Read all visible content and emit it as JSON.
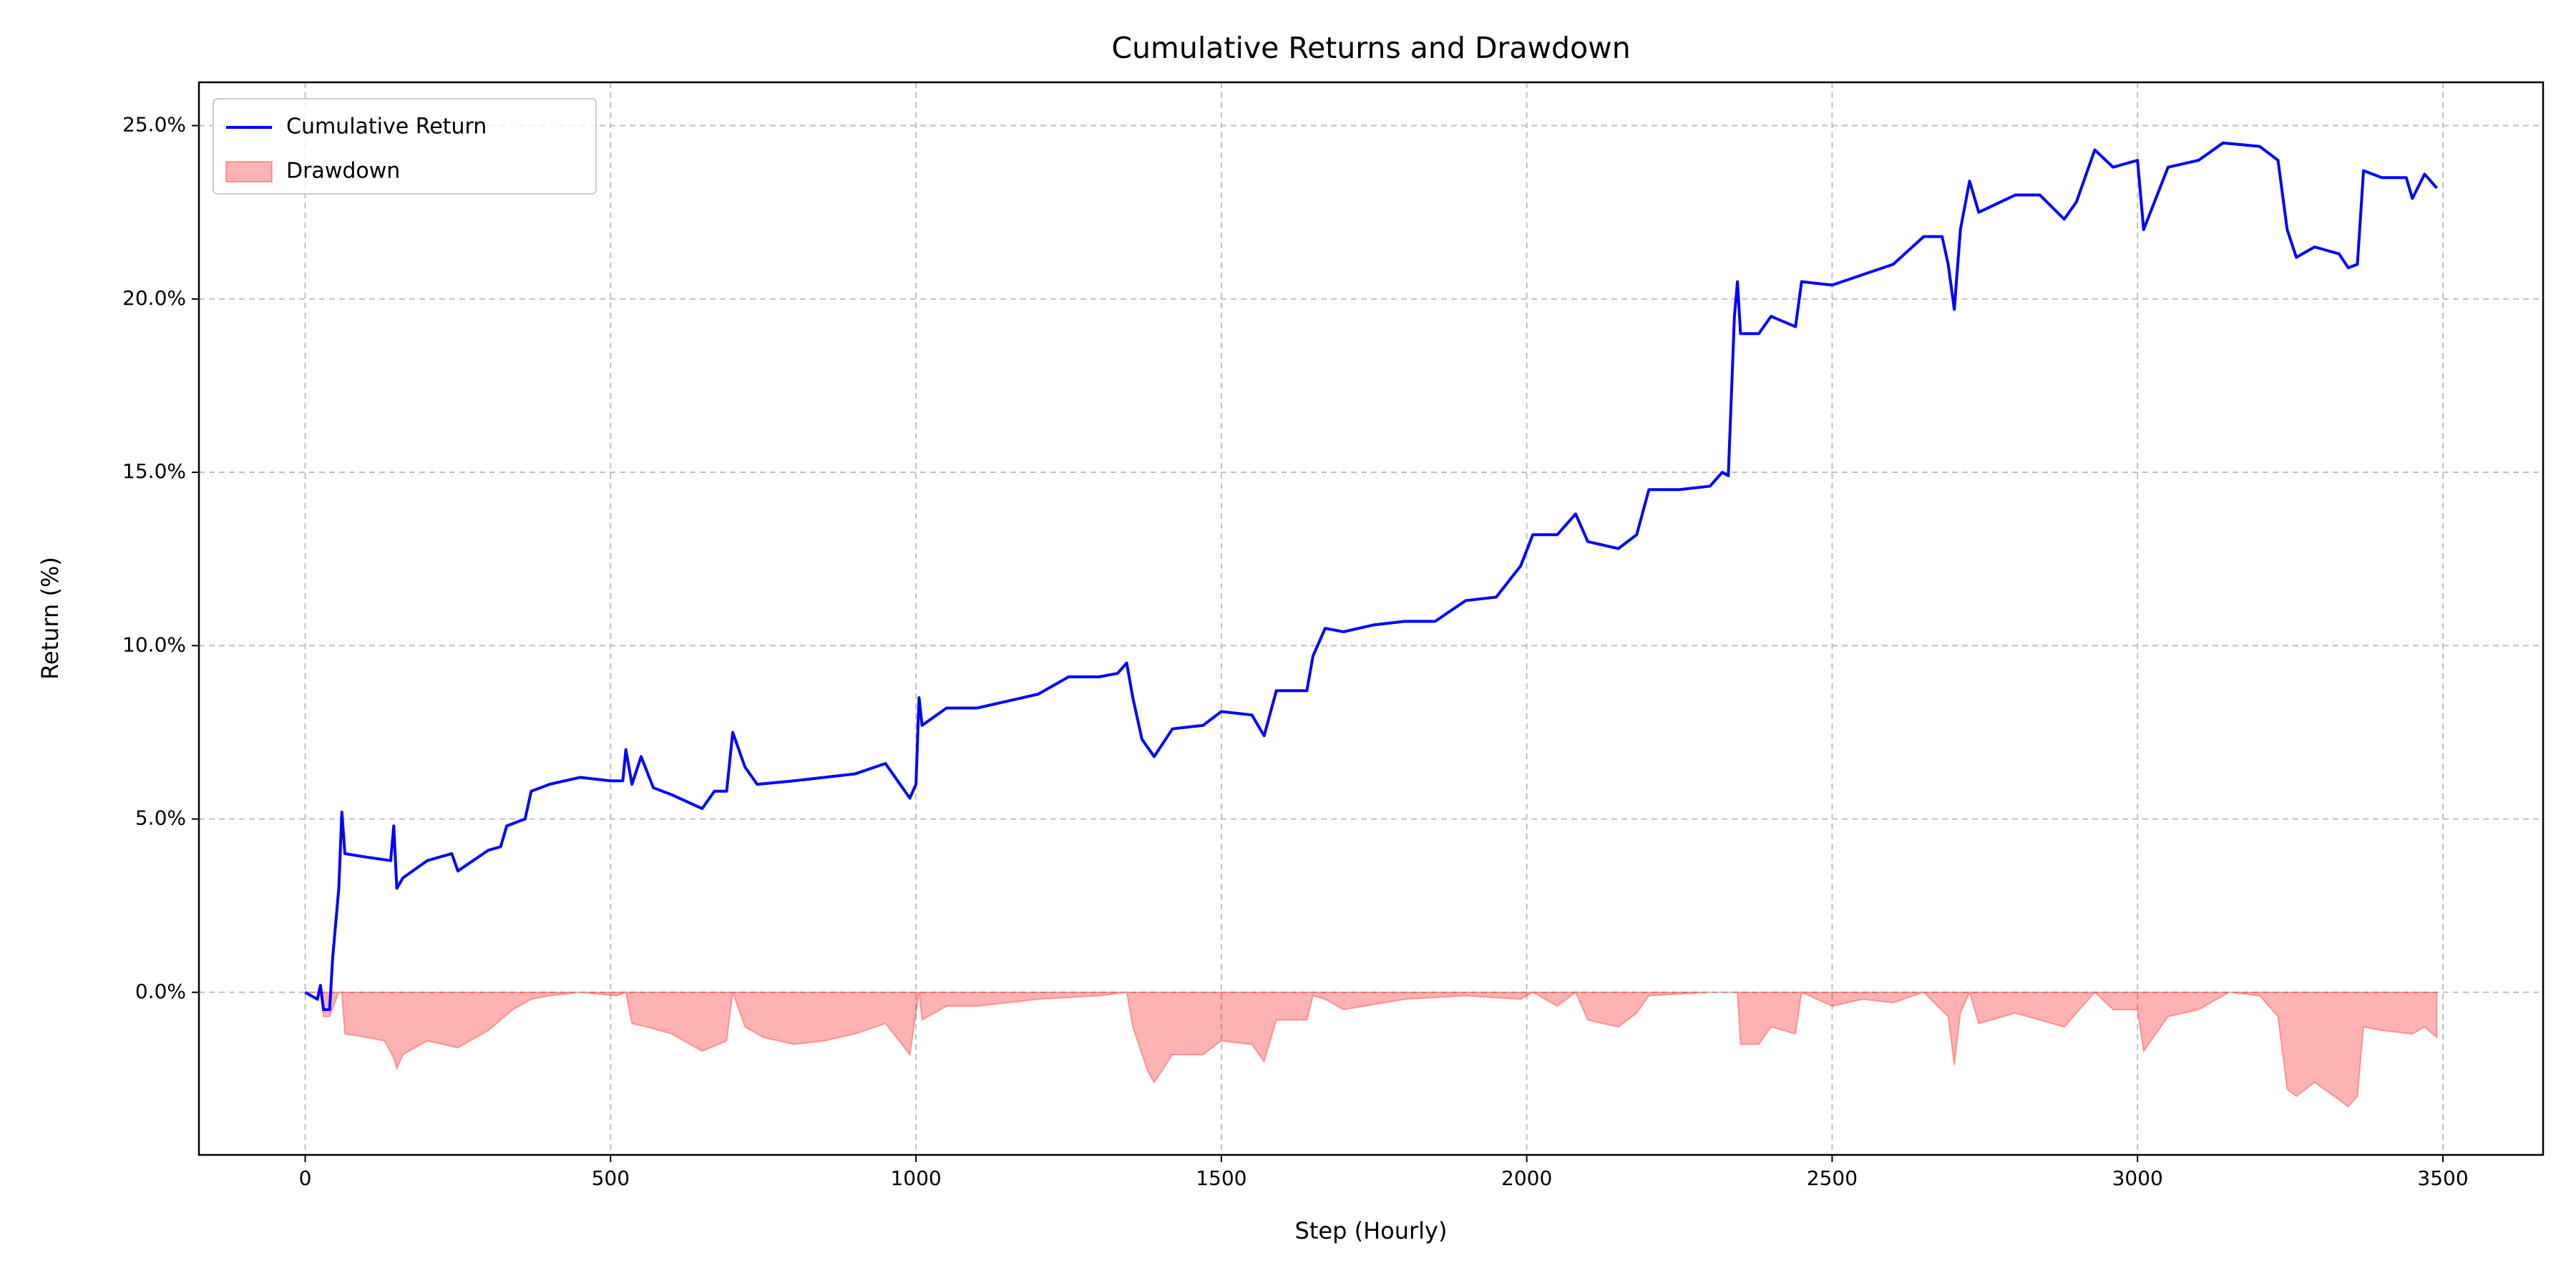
{
  "chart_data": {
    "type": "line",
    "title": "Cumulative Returns and Drawdown",
    "x_label": "Step (Hourly)",
    "y_label": "Return (%)",
    "xlim": [
      -174,
      3664
    ],
    "ylim": [
      -4.69,
      26.25
    ],
    "xticks": [
      0,
      500,
      1000,
      1500,
      2000,
      2500,
      3000,
      3500
    ],
    "yticks": [
      {
        "value": 0,
        "label": "0.0%"
      },
      {
        "value": 5,
        "label": "5.0%"
      },
      {
        "value": 10,
        "label": "10.0%"
      },
      {
        "value": 15,
        "label": "15.0%"
      },
      {
        "value": 20,
        "label": "20.0%"
      },
      {
        "value": 25,
        "label": "25.0%"
      }
    ],
    "grid": true,
    "legend": "upper left",
    "series": [
      {
        "name": "Cumulative Return",
        "kind": "line",
        "color": "#0000ff",
        "x": [
          0,
          20,
          25,
          30,
          40,
          45,
          55,
          60,
          65,
          100,
          140,
          145,
          150,
          160,
          200,
          240,
          250,
          300,
          320,
          330,
          360,
          370,
          400,
          450,
          500,
          520,
          525,
          535,
          550,
          570,
          600,
          650,
          670,
          690,
          700,
          720,
          740,
          800,
          850,
          900,
          950,
          990,
          1000,
          1005,
          1010,
          1050,
          1100,
          1150,
          1200,
          1250,
          1300,
          1330,
          1345,
          1355,
          1370,
          1390,
          1420,
          1470,
          1500,
          1550,
          1570,
          1590,
          1640,
          1650,
          1670,
          1700,
          1750,
          1800,
          1850,
          1900,
          1950,
          1990,
          2010,
          2050,
          2080,
          2100,
          2150,
          2180,
          2200,
          2250,
          2300,
          2320,
          2330,
          2340,
          2345,
          2350,
          2380,
          2400,
          2440,
          2450,
          2500,
          2550,
          2600,
          2650,
          2680,
          2690,
          2700,
          2710,
          2725,
          2740,
          2800,
          2840,
          2880,
          2900,
          2930,
          2960,
          3000,
          3010,
          3050,
          3100,
          3140,
          3200,
          3230,
          3245,
          3260,
          3290,
          3330,
          3345,
          3360,
          3370,
          3400,
          3440,
          3450,
          3470,
          3490
        ],
        "values": [
          0,
          -0.2,
          0.2,
          -0.5,
          -0.5,
          1,
          3,
          5.2,
          4,
          3.9,
          3.8,
          4.8,
          3,
          3.3,
          3.8,
          4.0,
          3.5,
          4.1,
          4.2,
          4.8,
          5.0,
          5.8,
          6.0,
          6.2,
          6.1,
          6.1,
          7.0,
          6.0,
          6.8,
          5.9,
          5.7,
          5.3,
          5.8,
          5.8,
          7.5,
          6.5,
          6.0,
          6.1,
          6.2,
          6.3,
          6.6,
          5.6,
          6.0,
          8.5,
          7.7,
          8.2,
          8.2,
          8.4,
          8.6,
          9.1,
          9.1,
          9.2,
          9.5,
          8.5,
          7.3,
          6.8,
          7.6,
          7.7,
          8.1,
          8.0,
          7.4,
          8.7,
          8.7,
          9.7,
          10.5,
          10.4,
          10.6,
          10.7,
          10.7,
          11.3,
          11.4,
          12.3,
          13.2,
          13.2,
          13.8,
          13.0,
          12.8,
          13.2,
          14.5,
          14.5,
          14.6,
          15.0,
          14.9,
          19.5,
          20.5,
          19.0,
          19.0,
          19.5,
          19.2,
          20.5,
          20.4,
          20.7,
          21.0,
          21.8,
          21.8,
          21.0,
          19.7,
          22.0,
          23.4,
          22.5,
          23.0,
          23.0,
          22.3,
          22.8,
          24.3,
          23.8,
          24.0,
          22.0,
          23.8,
          24.0,
          24.5,
          24.4,
          24.0,
          22.0,
          21.2,
          21.5,
          21.3,
          20.9,
          21.0,
          23.7,
          23.5,
          23.5,
          22.9,
          23.6,
          23.2
        ]
      },
      {
        "name": "Drawdown",
        "kind": "area",
        "color": "#ff0000",
        "alpha": 0.3,
        "x": [
          0,
          25,
          30,
          40,
          55,
          60,
          65,
          100,
          130,
          145,
          150,
          160,
          200,
          250,
          300,
          340,
          370,
          400,
          450,
          510,
          525,
          535,
          560,
          600,
          650,
          690,
          700,
          720,
          750,
          800,
          850,
          900,
          950,
          990,
          1005,
          1010,
          1050,
          1100,
          1200,
          1300,
          1345,
          1355,
          1380,
          1390,
          1420,
          1470,
          1500,
          1550,
          1570,
          1590,
          1640,
          1650,
          1670,
          1700,
          1800,
          1900,
          1990,
          2010,
          2050,
          2080,
          2100,
          2150,
          2180,
          2200,
          2300,
          2345,
          2350,
          2380,
          2400,
          2440,
          2450,
          2500,
          2550,
          2600,
          2650,
          2690,
          2700,
          2710,
          2725,
          2740,
          2800,
          2880,
          2930,
          2960,
          3000,
          3010,
          3050,
          3100,
          3150,
          3200,
          3230,
          3245,
          3260,
          3290,
          3330,
          3345,
          3360,
          3370,
          3400,
          3450,
          3470,
          3490
        ],
        "values": [
          0,
          0,
          -0.7,
          -0.7,
          0,
          0,
          -1.2,
          -1.3,
          -1.4,
          -1.9,
          -2.2,
          -1.8,
          -1.4,
          -1.6,
          -1.1,
          -0.5,
          -0.2,
          -0.1,
          0,
          -0.1,
          0,
          -0.9,
          -1.0,
          -1.2,
          -1.7,
          -1.4,
          0,
          -1.0,
          -1.3,
          -1.5,
          -1.4,
          -1.2,
          -0.9,
          -1.8,
          0,
          -0.8,
          -0.4,
          -0.4,
          -0.2,
          -0.1,
          0,
          -1.0,
          -2.3,
          -2.6,
          -1.8,
          -1.8,
          -1.4,
          -1.5,
          -2.0,
          -0.8,
          -0.8,
          -0.1,
          -0.2,
          -0.5,
          -0.2,
          -0.1,
          -0.2,
          0,
          -0.4,
          0,
          -0.8,
          -1.0,
          -0.6,
          -0.1,
          0,
          0,
          -1.5,
          -1.5,
          -1.0,
          -1.2,
          0,
          -0.4,
          -0.2,
          -0.3,
          0,
          -0.7,
          -2.1,
          -0.6,
          0,
          -0.9,
          -0.6,
          -1.0,
          0,
          -0.5,
          -0.5,
          -1.7,
          -0.7,
          -0.5,
          0,
          -0.1,
          -0.7,
          -2.8,
          -3.0,
          -2.6,
          -3.1,
          -3.3,
          -3.0,
          -1.0,
          -1.1,
          -1.2,
          -1.0,
          -1.3
        ]
      }
    ]
  }
}
